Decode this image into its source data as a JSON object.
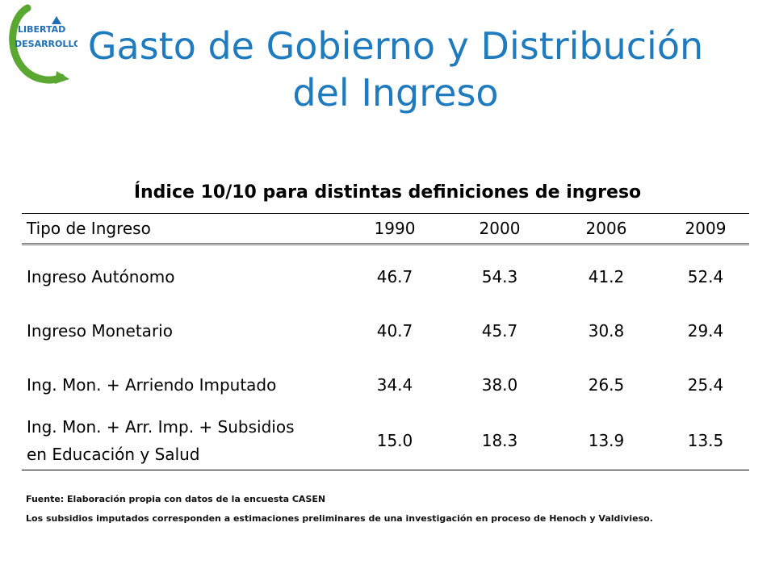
{
  "logo": {
    "line1": "LIBERTAD",
    "line2": "DESARROLLO",
    "colors": {
      "green": "#5aa832",
      "blue": "#1f6fb5"
    }
  },
  "title": "Gasto de Gobierno y Distribución del Ingreso",
  "table": {
    "caption": "Índice 10/10 para distintas definiciones de ingreso",
    "header": [
      "Tipo de Ingreso",
      "1990",
      "2000",
      "2006",
      "2009"
    ],
    "rows": [
      {
        "label": [
          "Ingreso Autónomo"
        ],
        "values": [
          "46.7",
          "54.3",
          "41.2",
          "52.4"
        ]
      },
      {
        "label": [
          "Ingreso Monetario"
        ],
        "values": [
          "40.7",
          "45.7",
          "30.8",
          "29.4"
        ]
      },
      {
        "label": [
          "Ing. Mon. + Arriendo Imputado"
        ],
        "values": [
          "34.4",
          "38.0",
          "26.5",
          "25.4"
        ]
      },
      {
        "label": [
          "Ing. Mon. + Arr. Imp. + Subsidios",
          "en Educación y Salud"
        ],
        "values": [
          "15.0",
          "18.3",
          "13.9",
          "13.5"
        ]
      }
    ]
  },
  "notes": {
    "source": "Fuente: Elaboración propia con datos de la encuesta CASEN",
    "detail": "Los subsidios imputados corresponden a estimaciones preliminares de una investigación en proceso de Henoch y Valdivieso."
  },
  "colors": {
    "title": "#1f7bbf"
  }
}
